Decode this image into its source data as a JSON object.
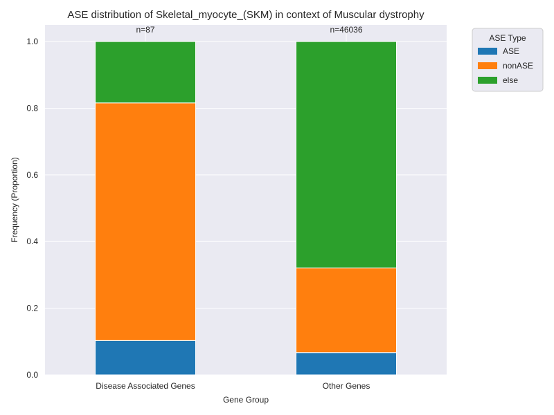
{
  "chart_data": {
    "type": "bar",
    "stacked": true,
    "title": "ASE distribution of Skeletal_myocyte_(SKM) in context of Muscular dystrophy",
    "xlabel": "Gene Group",
    "ylabel": "Frequency (Proportion)",
    "ylim": [
      0,
      1.05
    ],
    "yticks": [
      "0.0",
      "0.2",
      "0.4",
      "0.6",
      "0.8",
      "1.0"
    ],
    "categories": [
      "Disease Associated Genes",
      "Other Genes"
    ],
    "counts": [
      "n=87",
      "n=46036"
    ],
    "series": [
      {
        "name": "ASE",
        "color": "#1f77b4",
        "values": [
          0.103,
          0.067
        ]
      },
      {
        "name": "nonASE",
        "color": "#ff7f0e",
        "values": [
          0.713,
          0.254
        ]
      },
      {
        "name": "else",
        "color": "#2ca02c",
        "values": [
          0.184,
          0.679
        ]
      }
    ],
    "legend": {
      "title": "ASE Type",
      "position": "outside-top-right"
    },
    "grid": true,
    "background": "#eaeaf2"
  }
}
